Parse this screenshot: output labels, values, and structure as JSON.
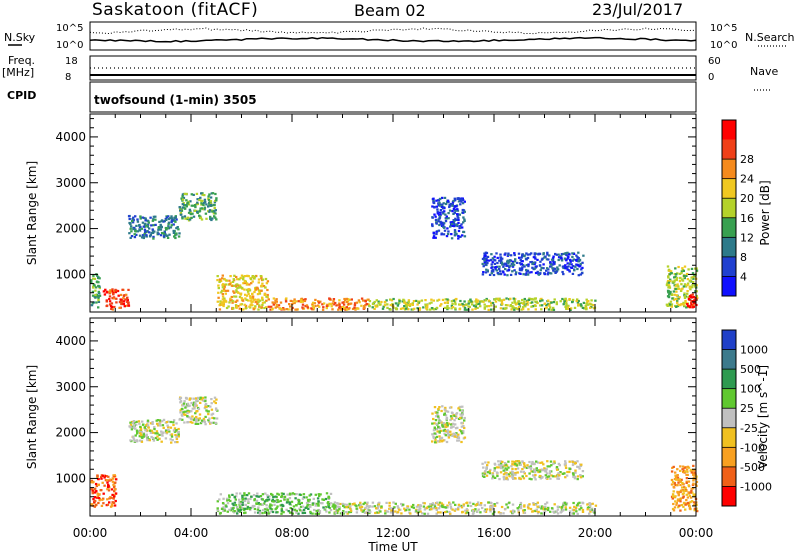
{
  "header": {
    "station": "Saskatoon (fitACF)",
    "beam": "Beam 02",
    "date": "23/Jul/2017"
  },
  "summary": {
    "nsky_label": "N.Sky",
    "nsearch_label": "N.Search",
    "nsky_ticks": [
      "10^5",
      "10^0"
    ],
    "nsearch_ticks": [
      "10^5",
      "10^0"
    ],
    "freq_label": "Freq.",
    "freq_unit": "[MHz]",
    "freq_ticks": [
      "18",
      "8"
    ],
    "nave_label": "Nave",
    "nave_ticks": [
      "60",
      "0"
    ],
    "cpid_label": "CPID",
    "cpid_value": "twofsound (1-min) 3505"
  },
  "chart_data": [
    {
      "type": "heatmap",
      "name": "power",
      "ylabel": "Slant Range [km]",
      "xlabel": "",
      "y_ticks": [
        "1000",
        "2000",
        "3000",
        "4000"
      ],
      "ylim": [
        180,
        4500
      ],
      "colorbar": {
        "label": "Power [dB]",
        "ticks": [
          "4",
          "8",
          "12",
          "16",
          "20",
          "24",
          "28"
        ],
        "colors": [
          "#1010ff",
          "#2040d0",
          "#2d7a8a",
          "#38a050",
          "#b4d22a",
          "#f0c820",
          "#f58a1c",
          "#f04018",
          "#ff0000"
        ]
      },
      "regions": [
        {
          "t0": 0.0,
          "t1": 0.35,
          "r0": 300,
          "r1": 1100,
          "level": 3
        },
        {
          "t0": 0.5,
          "t1": 1.5,
          "r0": 250,
          "r1": 700,
          "level": 7
        },
        {
          "t0": 1.5,
          "t1": 3.5,
          "r0": 1800,
          "r1": 2300,
          "level": 2
        },
        {
          "t0": 3.5,
          "t1": 5.0,
          "r0": 2200,
          "r1": 2800,
          "level": 3
        },
        {
          "t0": 5.0,
          "t1": 7.0,
          "r0": 250,
          "r1": 1000,
          "level": 5
        },
        {
          "t0": 7.0,
          "t1": 11.0,
          "r0": 250,
          "r1": 500,
          "level": 6
        },
        {
          "t0": 11.0,
          "t1": 20.0,
          "r0": 250,
          "r1": 500,
          "level": 4
        },
        {
          "t0": 13.5,
          "t1": 14.8,
          "r0": 1800,
          "r1": 2700,
          "level": 1
        },
        {
          "t0": 15.5,
          "t1": 19.5,
          "r0": 1000,
          "r1": 1500,
          "level": 1
        },
        {
          "t0": 22.8,
          "t1": 24.0,
          "r0": 300,
          "r1": 1200,
          "level": 4
        },
        {
          "t0": 23.6,
          "t1": 24.0,
          "r0": 300,
          "r1": 600,
          "level": 8
        }
      ]
    },
    {
      "type": "heatmap",
      "name": "velocity",
      "ylabel": "Slant Range [km]",
      "xlabel": "Time UT",
      "x_ticks": [
        "00:00",
        "04:00",
        "08:00",
        "12:00",
        "16:00",
        "20:00",
        "00:00"
      ],
      "xlim": [
        0,
        24
      ],
      "y_ticks": [
        "1000",
        "2000",
        "3000",
        "4000"
      ],
      "ylim": [
        180,
        4500
      ],
      "colorbar": {
        "label": "Velocity [m s^-1]",
        "ticks": [
          "1000",
          "500",
          "100",
          "25",
          "-25",
          "-100",
          "-500",
          "-1000"
        ],
        "colors": [
          "#2040c8",
          "#3c7a8c",
          "#2e9a50",
          "#60c830",
          "#c0c0c0",
          "#f0c020",
          "#f8a020",
          "#f06018",
          "#ff0000"
        ]
      },
      "regions": [
        {
          "t0": 0.0,
          "t1": 1.0,
          "r0": 400,
          "r1": 1100,
          "level": 7
        },
        {
          "t0": 1.5,
          "t1": 3.5,
          "r0": 1800,
          "r1": 2300,
          "level": 4
        },
        {
          "t0": 3.5,
          "t1": 5.0,
          "r0": 2200,
          "r1": 2800,
          "level": 4
        },
        {
          "t0": 5.0,
          "t1": 9.5,
          "r0": 250,
          "r1": 700,
          "level": 3
        },
        {
          "t0": 9.5,
          "t1": 20.0,
          "r0": 250,
          "r1": 500,
          "level": 4
        },
        {
          "t0": 13.5,
          "t1": 14.8,
          "r0": 1800,
          "r1": 2600,
          "level": 4
        },
        {
          "t0": 15.5,
          "t1": 19.5,
          "r0": 1000,
          "r1": 1400,
          "level": 4
        },
        {
          "t0": 23.0,
          "t1": 24.0,
          "r0": 300,
          "r1": 1300,
          "level": 6
        }
      ]
    }
  ]
}
